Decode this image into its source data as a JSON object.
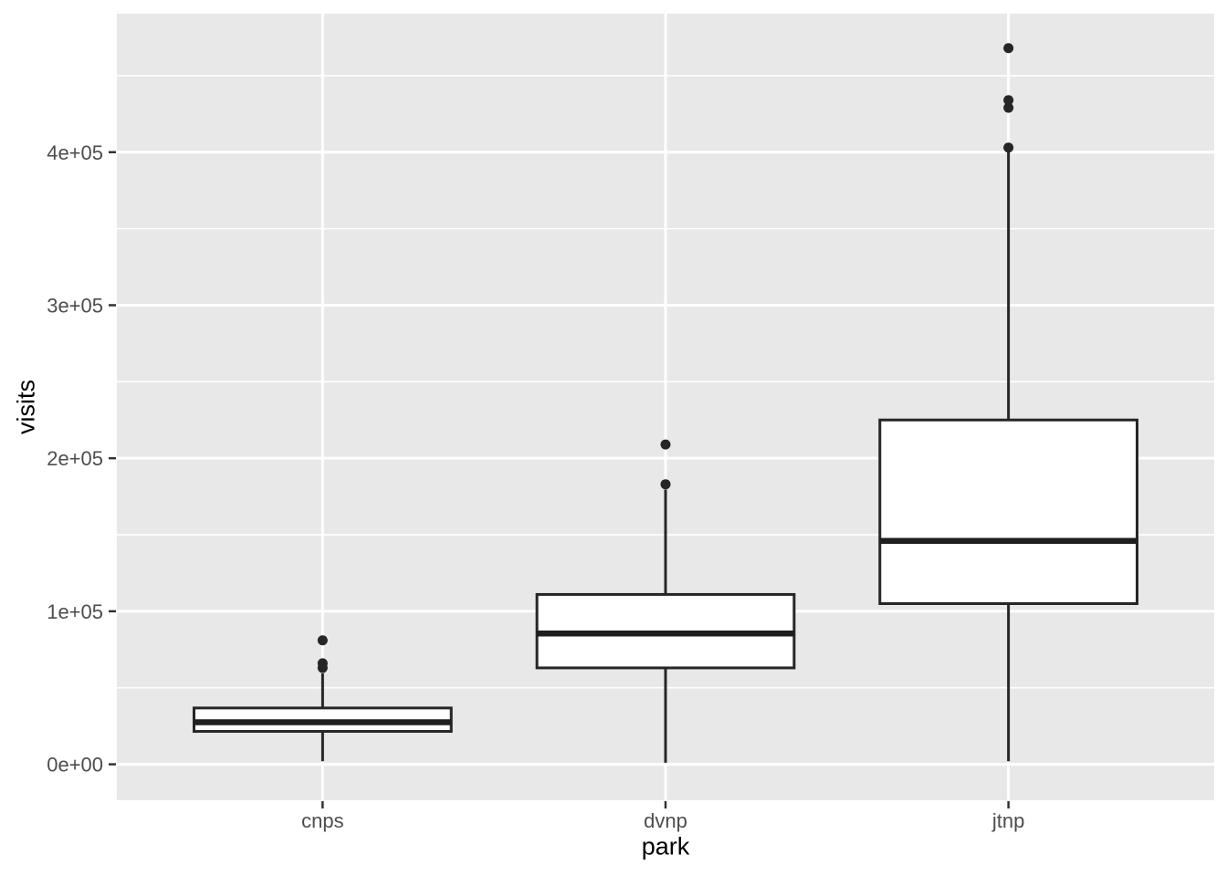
{
  "chart_data": {
    "type": "boxplot",
    "title": "",
    "xlabel": "park",
    "ylabel": "visits",
    "categories": [
      "cnps",
      "dvnp",
      "jtnp"
    ],
    "y_ticks": [
      {
        "value": 0,
        "label": "0e+00"
      },
      {
        "value": 100000,
        "label": "1e+05"
      },
      {
        "value": 200000,
        "label": "2e+05"
      },
      {
        "value": 300000,
        "label": "3e+05"
      },
      {
        "value": 400000,
        "label": "4e+05"
      }
    ],
    "y_minor_ticks": [
      50000,
      150000,
      250000,
      350000,
      450000
    ],
    "ylim": [
      -23500,
      490500
    ],
    "grid": {
      "major": true,
      "minor": true,
      "vertical_major_at_categories": true
    },
    "legend": "none",
    "series": [
      {
        "category": "cnps",
        "whisker_low": 2000,
        "q1": 21500,
        "median": 27500,
        "q3": 36800,
        "whisker_high": 59500,
        "outliers": [
          63000,
          66000,
          81000
        ]
      },
      {
        "category": "dvnp",
        "whisker_low": 1000,
        "q1": 63000,
        "median": 85500,
        "q3": 111000,
        "whisker_high": 179500,
        "outliers": [
          183000,
          209000
        ]
      },
      {
        "category": "jtnp",
        "whisker_low": 2000,
        "q1": 105000,
        "median": 146000,
        "q3": 225000,
        "whisker_high": 400000,
        "outliers": [
          403000,
          429000,
          434000,
          468000
        ]
      }
    ],
    "colors": {
      "figure_bg": "#FFFFFF",
      "panel_bg": "#E8E8E8",
      "grid": "#FFFFFF",
      "box_border": "#262626",
      "box_fill": "#FFFFFF",
      "median": "#1F1F1F",
      "outlier": "#262626",
      "axis_text": "#4D4D4D",
      "axis_title": "#000000",
      "tick_mark": "#333333"
    }
  }
}
